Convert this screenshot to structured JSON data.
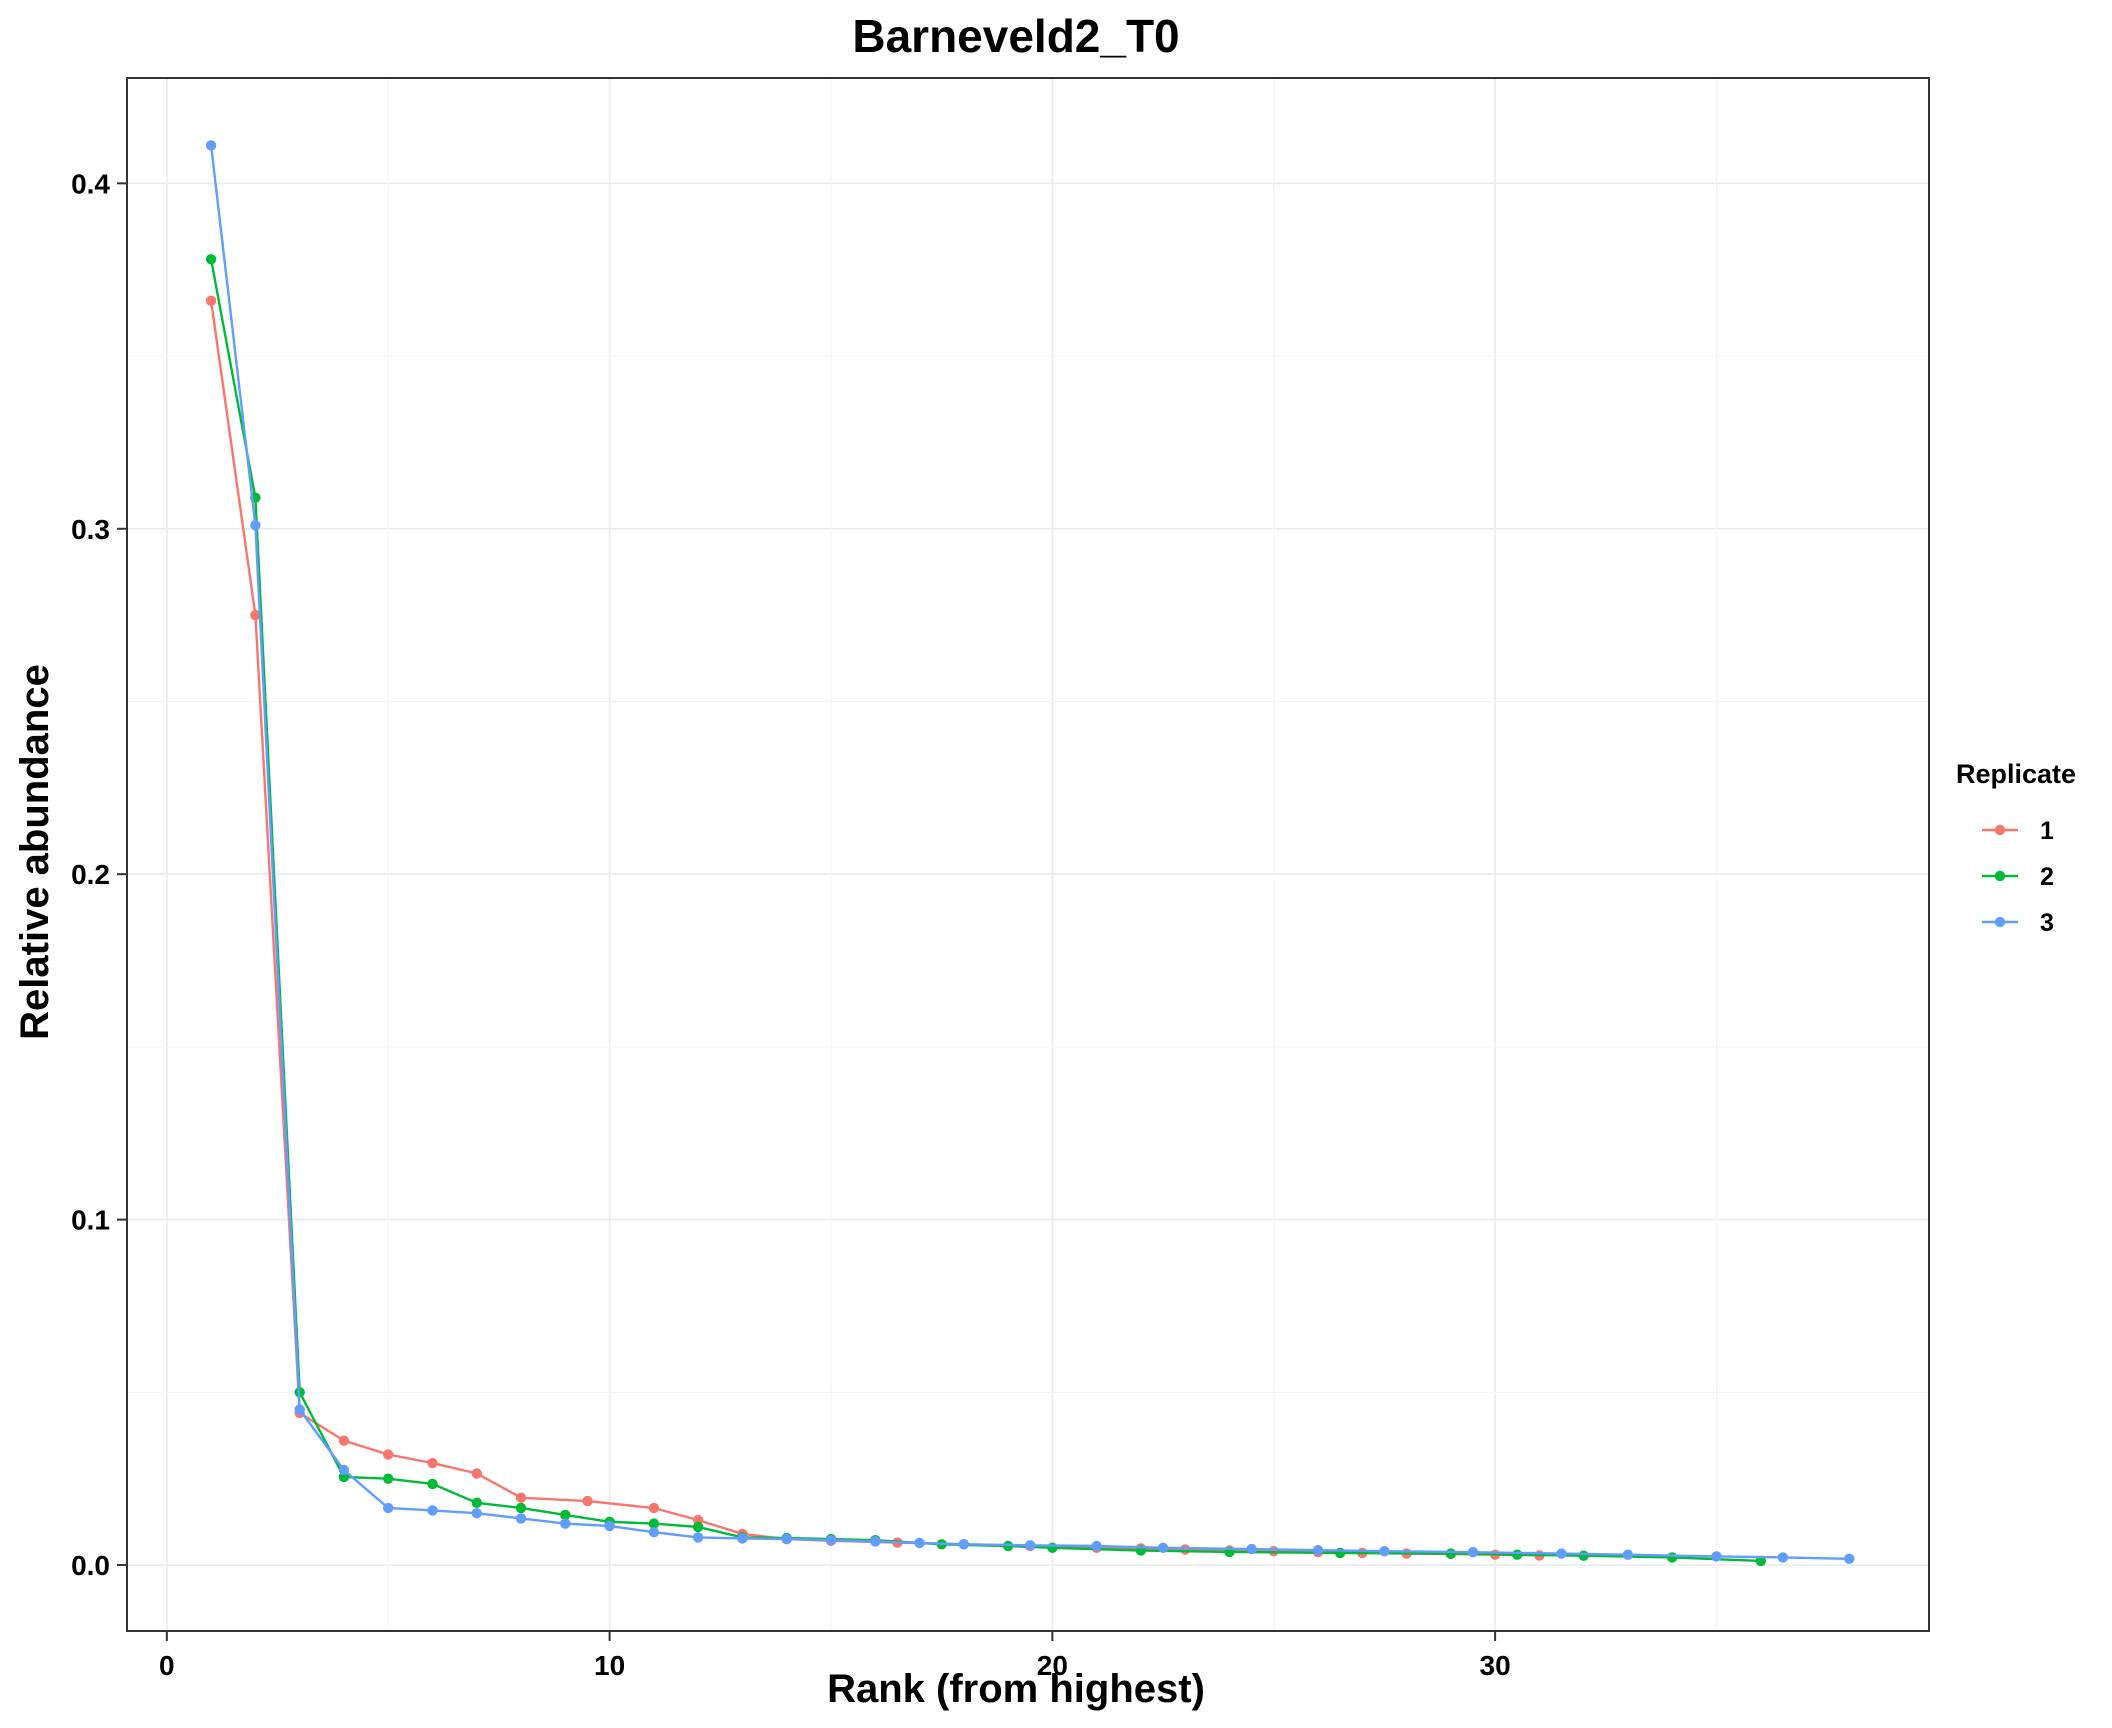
{
  "chart_data": {
    "type": "line",
    "title": "Barneveld2_T0",
    "xlabel": "Rank (from highest)",
    "ylabel": "Relative abundance",
    "xlim": [
      -0.9,
      39.8
    ],
    "ylim": [
      -0.0191,
      0.4305
    ],
    "x_ticks": [
      0,
      10,
      20,
      30
    ],
    "x_tick_labels": [
      "0",
      "10",
      "20",
      "30"
    ],
    "y_ticks": [
      0.0,
      0.1,
      0.2,
      0.3,
      0.4
    ],
    "y_tick_labels": [
      "0.0",
      "0.1",
      "0.2",
      "0.3",
      "0.4"
    ],
    "grid": true,
    "legend": {
      "title": "Replicate",
      "position": "right"
    },
    "series": [
      {
        "name": "1",
        "color": "#F8766D",
        "points": [
          [
            1,
            0.366
          ],
          [
            2,
            0.275
          ],
          [
            3,
            0.044
          ],
          [
            4,
            0.036
          ],
          [
            5,
            0.032
          ],
          [
            6,
            0.0295
          ],
          [
            7,
            0.0265
          ],
          [
            8,
            0.0195
          ],
          [
            9.5,
            0.0185
          ],
          [
            11,
            0.0165
          ],
          [
            12,
            0.013
          ],
          [
            13,
            0.009
          ],
          [
            14,
            0.0075
          ],
          [
            15,
            0.007
          ],
          [
            16.5,
            0.0065
          ],
          [
            18,
            0.006
          ],
          [
            19.5,
            0.0055
          ],
          [
            21,
            0.005
          ],
          [
            22,
            0.0048
          ],
          [
            23,
            0.0045
          ],
          [
            24,
            0.0042
          ],
          [
            25,
            0.004
          ],
          [
            26,
            0.0037
          ],
          [
            27,
            0.0035
          ],
          [
            28,
            0.0033
          ],
          [
            29,
            0.0032
          ],
          [
            30,
            0.003
          ],
          [
            31,
            0.0028
          ]
        ]
      },
      {
        "name": "2",
        "color": "#00BA38",
        "points": [
          [
            1,
            0.378
          ],
          [
            2,
            0.309
          ],
          [
            3,
            0.05
          ],
          [
            4,
            0.0255
          ],
          [
            5,
            0.025
          ],
          [
            6,
            0.0235
          ],
          [
            7,
            0.018
          ],
          [
            8,
            0.0165
          ],
          [
            9,
            0.0145
          ],
          [
            10,
            0.0125
          ],
          [
            11,
            0.012
          ],
          [
            12,
            0.011
          ],
          [
            13,
            0.008
          ],
          [
            14,
            0.0078
          ],
          [
            15,
            0.0075
          ],
          [
            16,
            0.0072
          ],
          [
            17.5,
            0.006
          ],
          [
            19,
            0.0055
          ],
          [
            20,
            0.005
          ],
          [
            22,
            0.0042
          ],
          [
            24,
            0.0038
          ],
          [
            26.5,
            0.0035
          ],
          [
            29,
            0.0033
          ],
          [
            30.5,
            0.003
          ],
          [
            32,
            0.0027
          ],
          [
            34,
            0.0022
          ],
          [
            36,
            0.0012
          ]
        ]
      },
      {
        "name": "3",
        "color": "#619CFF",
        "points": [
          [
            1,
            0.411
          ],
          [
            2,
            0.301
          ],
          [
            3,
            0.045
          ],
          [
            4,
            0.0275
          ],
          [
            5,
            0.0165
          ],
          [
            6,
            0.0158
          ],
          [
            7,
            0.015
          ],
          [
            8,
            0.0135
          ],
          [
            9,
            0.012
          ],
          [
            10,
            0.0113
          ],
          [
            11,
            0.0095
          ],
          [
            12,
            0.008
          ],
          [
            13,
            0.0077
          ],
          [
            14,
            0.0075
          ],
          [
            15,
            0.0072
          ],
          [
            16,
            0.0068
          ],
          [
            17,
            0.0064
          ],
          [
            18,
            0.006
          ],
          [
            19.5,
            0.0057
          ],
          [
            21,
            0.0055
          ],
          [
            22.5,
            0.005
          ],
          [
            24.5,
            0.0046
          ],
          [
            26,
            0.0043
          ],
          [
            27.5,
            0.004
          ],
          [
            29.5,
            0.0037
          ],
          [
            31.5,
            0.0033
          ],
          [
            33,
            0.003
          ],
          [
            35,
            0.0025
          ],
          [
            36.5,
            0.0022
          ],
          [
            38,
            0.0018
          ]
        ]
      }
    ]
  }
}
